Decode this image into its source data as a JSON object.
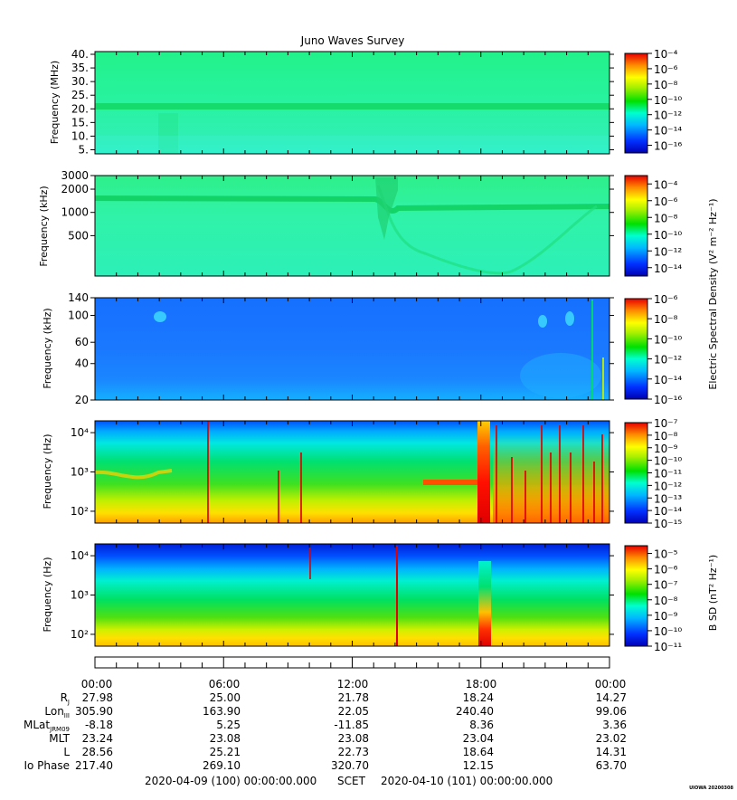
{
  "title": "Juno Waves Survey",
  "chart_data": [
    {
      "type": "heatmap",
      "name": "panel-1",
      "ylabel": "Frequency (MHz)",
      "yscale": "linear",
      "ylim": [
        3.5,
        41
      ],
      "yticks": [
        5,
        10,
        15,
        20,
        25,
        30,
        35,
        40
      ],
      "yticklabels": [
        "5.",
        "10.",
        "15.",
        "20.",
        "25.",
        "30.",
        "35.",
        "40."
      ],
      "colorbar": {
        "label": "",
        "ticks": [
          -4,
          -6,
          -8,
          -10,
          -12,
          -14,
          -16
        ],
        "range": [
          -17,
          -4
        ]
      }
    },
    {
      "type": "heatmap",
      "name": "panel-2",
      "ylabel": "Frequency (kHz)",
      "yscale": "log",
      "ylim": [
        150,
        3000
      ],
      "yticks": [
        500,
        1000,
        2000,
        3000
      ],
      "yticklabels": [
        "500",
        "1000",
        "2000",
        "3000"
      ],
      "colorbar": {
        "label": "Electric Spectral Density (V² m⁻² Hz⁻¹)",
        "ticks": [
          -4,
          -6,
          -8,
          -10,
          -12,
          -14
        ],
        "range": [
          -15,
          -3
        ]
      }
    },
    {
      "type": "heatmap",
      "name": "panel-3",
      "ylabel": "Frequency (kHz)",
      "yscale": "log",
      "ylim": [
        20,
        140
      ],
      "yticks": [
        20,
        40,
        60,
        100,
        140
      ],
      "yticklabels": [
        "20",
        "40",
        "60",
        "100",
        "140"
      ],
      "colorbar": {
        "label": "",
        "ticks": [
          -6,
          -8,
          -10,
          -12,
          -14,
          -16
        ],
        "range": [
          -16,
          -6
        ]
      }
    },
    {
      "type": "heatmap",
      "name": "panel-4",
      "ylabel": "Frequency (Hz)",
      "yscale": "log",
      "ylim": [
        50,
        20000
      ],
      "yticks": [
        100,
        1000,
        10000
      ],
      "yticklabels": [
        "10²",
        "10³",
        "10⁴"
      ],
      "colorbar": {
        "label": "",
        "ticks": [
          -7,
          -8,
          -9,
          -10,
          -11,
          -12,
          -13,
          -14,
          -15
        ],
        "range": [
          -15,
          -7
        ]
      }
    },
    {
      "type": "heatmap",
      "name": "panel-5",
      "ylabel": "Frequency (Hz)",
      "yscale": "log",
      "ylim": [
        50,
        20000
      ],
      "yticks": [
        100,
        1000,
        10000
      ],
      "yticklabels": [
        "10²",
        "10³",
        "10⁴"
      ],
      "colorbar": {
        "label": "B SD (nT² Hz⁻¹)",
        "ticks": [
          -5,
          -6,
          -7,
          -8,
          -9,
          -10,
          -11
        ],
        "range": [
          -11,
          -4.5
        ]
      }
    }
  ],
  "time_axis": {
    "ticks": [
      "00:00",
      "06:00",
      "12:00",
      "18:00",
      "00:00"
    ]
  },
  "ephemeris": [
    {
      "label": "R",
      "sub": "J",
      "values": [
        "27.98",
        "25.00",
        "21.78",
        "18.24",
        "14.27"
      ]
    },
    {
      "label": "Lon",
      "sub": "III",
      "values": [
        "305.90",
        "163.90",
        "22.05",
        "240.40",
        "99.06"
      ]
    },
    {
      "label": "MLat",
      "sub": "JRM09",
      "values": [
        "-8.18",
        "5.25",
        "-11.85",
        "8.36",
        "3.36"
      ]
    },
    {
      "label": "MLT",
      "sub": "",
      "values": [
        "23.24",
        "23.08",
        "23.08",
        "23.04",
        "23.02"
      ]
    },
    {
      "label": "L",
      "sub": "",
      "values": [
        "28.56",
        "25.21",
        "22.73",
        "18.64",
        "14.31"
      ]
    },
    {
      "label": "Io Phase",
      "sub": "",
      "values": [
        "217.40",
        "269.10",
        "320.70",
        "12.15",
        "63.70"
      ]
    }
  ],
  "footer": {
    "start": "2020-04-09 (100) 00:00:00.000",
    "scet": "SCET",
    "end": "2020-04-10 (101) 00:00:00.000"
  },
  "stamp": "UIOWA 20200308"
}
